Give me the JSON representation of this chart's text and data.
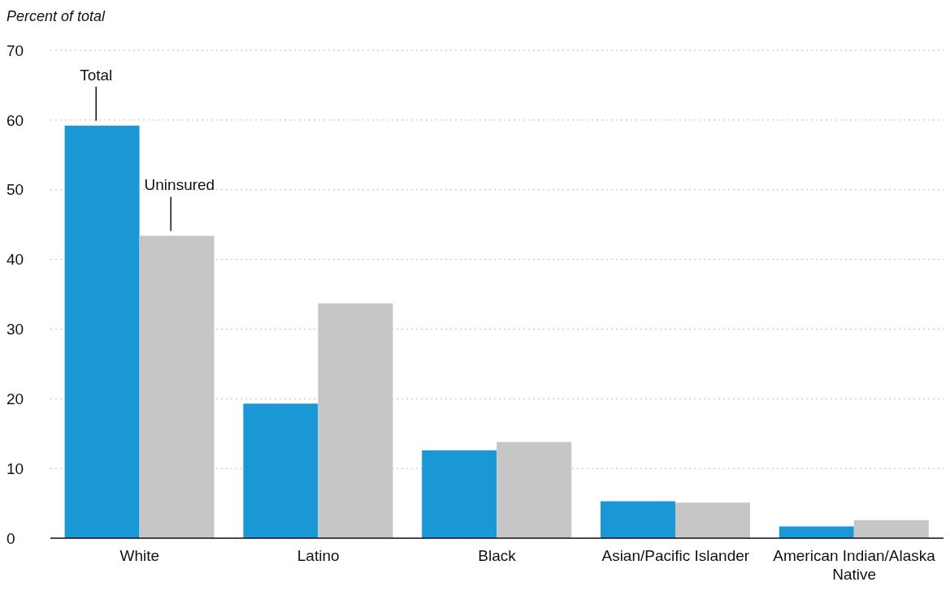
{
  "chart_data": {
    "type": "bar",
    "ylabel": "Percent of total",
    "categories": [
      "White",
      "Latino",
      "Black",
      "Asian/Pacific Islander",
      "American Indian/Alaska Native"
    ],
    "series": [
      {
        "name": "Total",
        "color": "#1a98d5",
        "values": [
          59.2,
          19.3,
          12.6,
          5.3,
          1.7
        ]
      },
      {
        "name": "Uninsured",
        "color": "#c6c6c6",
        "values": [
          43.4,
          33.7,
          13.8,
          5.1,
          2.6
        ]
      }
    ],
    "ylim": [
      0,
      70
    ],
    "yticks": [
      0,
      10,
      20,
      30,
      40,
      50,
      60,
      70
    ],
    "grid": "y"
  }
}
